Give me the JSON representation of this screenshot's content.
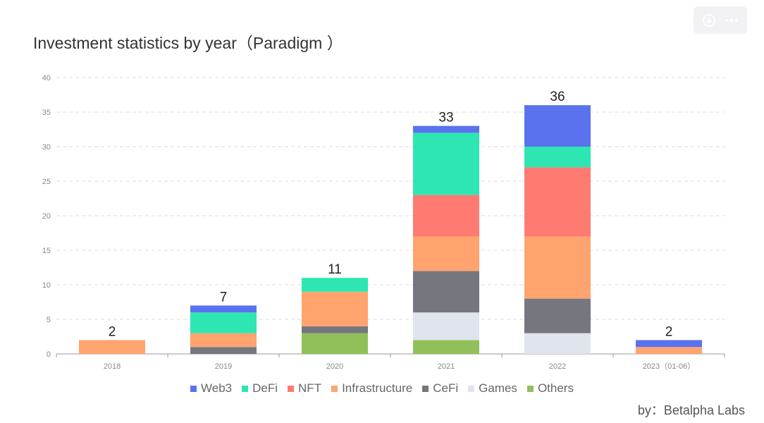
{
  "toolbar": {
    "download_icon": "download-icon",
    "more_icon": "more-icon"
  },
  "credit": "by：Betalpha Labs",
  "chart_data": {
    "type": "bar",
    "stacked": true,
    "title": "Investment statistics by year（Paradigm ）",
    "categories": [
      "2018",
      "2019",
      "2020",
      "2021",
      "2022",
      "2023（01-06）"
    ],
    "ylim": [
      0,
      40
    ],
    "yticks": [
      0,
      5,
      10,
      15,
      20,
      25,
      30,
      35,
      40
    ],
    "grid": true,
    "legend_position": "bottom-center",
    "totals": [
      2,
      7,
      11,
      33,
      36,
      2
    ],
    "series": [
      {
        "name": "Others",
        "color": "#91c05a",
        "values": [
          0,
          0,
          3,
          2,
          0,
          0
        ]
      },
      {
        "name": "Games",
        "color": "#e0e4ec",
        "values": [
          0,
          0,
          0,
          4,
          3,
          0
        ]
      },
      {
        "name": "CeFi",
        "color": "#76767f",
        "values": [
          0,
          1,
          1,
          6,
          5,
          0
        ]
      },
      {
        "name": "Infrastructure",
        "color": "#ffa36f",
        "values": [
          2,
          2,
          5,
          5,
          9,
          1
        ]
      },
      {
        "name": "NFT",
        "color": "#ff7a70",
        "values": [
          0,
          0,
          0,
          6,
          10,
          0
        ]
      },
      {
        "name": "DeFi",
        "color": "#2ee6b1",
        "values": [
          0,
          3,
          2,
          9,
          3,
          0
        ]
      },
      {
        "name": "Web3",
        "color": "#5a72ee",
        "values": [
          0,
          1,
          0,
          1,
          6,
          1
        ]
      }
    ],
    "legend_order": [
      "Web3",
      "DeFi",
      "NFT",
      "Infrastructure",
      "CeFi",
      "Games",
      "Others"
    ]
  }
}
